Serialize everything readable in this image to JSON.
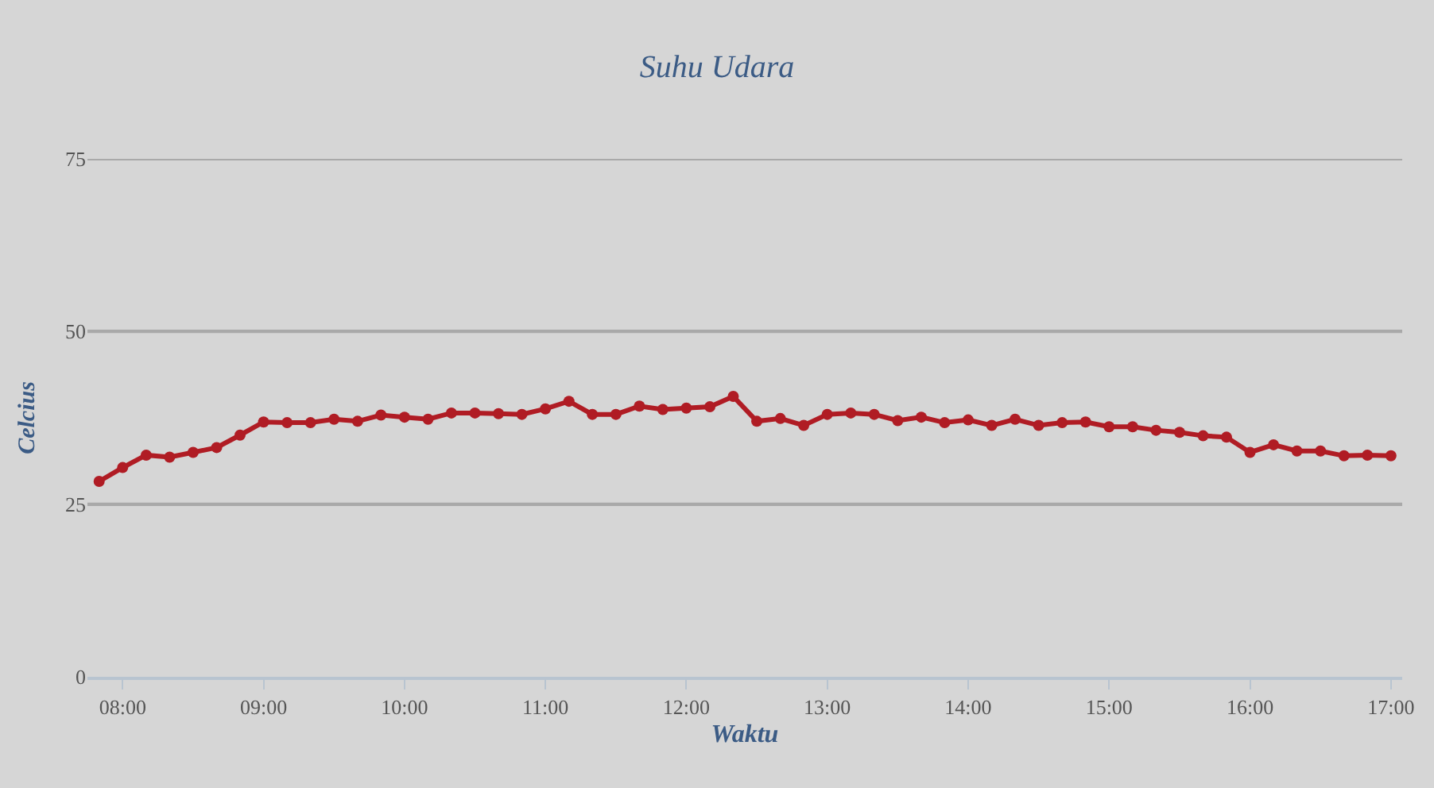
{
  "chart_data": {
    "type": "line",
    "title": "Suhu Udara",
    "xlabel": "Waktu",
    "ylabel": "Celcius",
    "x": [
      7.833,
      8.0,
      8.167,
      8.333,
      8.5,
      8.667,
      8.833,
      9.0,
      9.167,
      9.333,
      9.5,
      9.667,
      9.833,
      10.0,
      10.167,
      10.333,
      10.5,
      10.667,
      10.833,
      11.0,
      11.167,
      11.333,
      11.5,
      11.667,
      11.833,
      12.0,
      12.167,
      12.333,
      12.5,
      12.667,
      12.833,
      13.0,
      13.167,
      13.333,
      13.5,
      13.667,
      13.833,
      14.0,
      14.167,
      14.333,
      14.5,
      14.667,
      14.833,
      15.0,
      15.167,
      15.333,
      15.5,
      15.667,
      15.833,
      16.0,
      16.167,
      16.333,
      16.5,
      16.667,
      16.833,
      17.0
    ],
    "series": [
      {
        "color": "#b01c24",
        "values": [
          28.3,
          30.3,
          32.1,
          31.8,
          32.5,
          33.2,
          35.0,
          36.9,
          36.8,
          36.8,
          37.3,
          37.0,
          37.9,
          37.6,
          37.3,
          38.2,
          38.2,
          38.1,
          38.0,
          38.8,
          39.9,
          38.0,
          38.0,
          39.2,
          38.7,
          38.9,
          39.1,
          40.6,
          37.0,
          37.4,
          36.4,
          38.0,
          38.2,
          38.0,
          37.1,
          37.6,
          36.8,
          37.2,
          36.4,
          37.3,
          36.4,
          36.8,
          36.9,
          36.2,
          36.2,
          35.7,
          35.4,
          34.9,
          34.7,
          32.5,
          33.6,
          32.7,
          32.7,
          32.0,
          32.1,
          32.0
        ]
      }
    ],
    "xlim": [
      7.75,
      17.08
    ],
    "xticks": [
      {
        "value": 8,
        "label": "08:00"
      },
      {
        "value": 9,
        "label": "09:00"
      },
      {
        "value": 10,
        "label": "10:00"
      },
      {
        "value": 11,
        "label": "11:00"
      },
      {
        "value": 12,
        "label": "12:00"
      },
      {
        "value": 13,
        "label": "13:00"
      },
      {
        "value": 14,
        "label": "14:00"
      },
      {
        "value": 15,
        "label": "15:00"
      },
      {
        "value": 16,
        "label": "16:00"
      },
      {
        "value": 17,
        "label": "17:00"
      }
    ],
    "ylim": [
      0,
      75
    ],
    "yticks": [
      0,
      25,
      50,
      75
    ],
    "grid": "y",
    "marker": "circle",
    "line_style": "solid"
  }
}
